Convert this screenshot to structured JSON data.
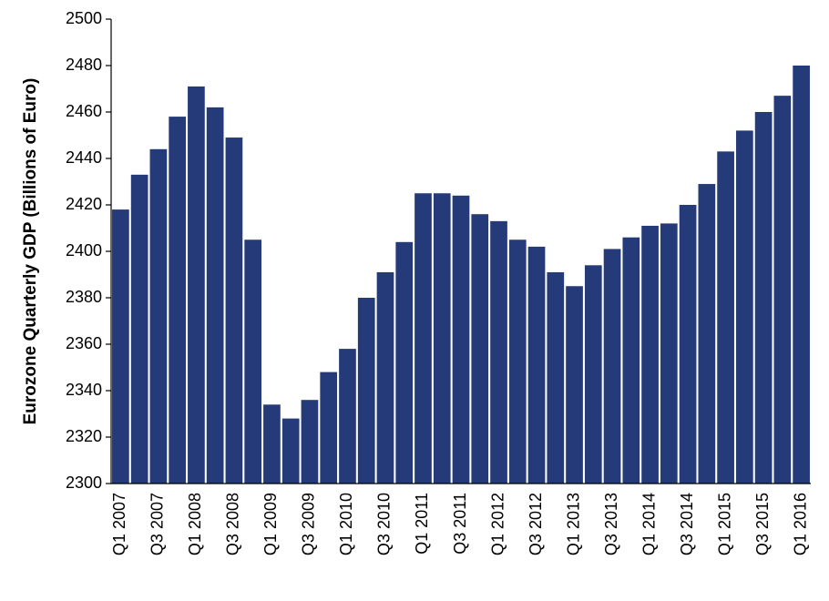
{
  "chart_data": {
    "type": "bar",
    "y_label": "Eurozone Quarterly GDP (Billions of Euro)",
    "categories": [
      "Q1 2007",
      null,
      "Q3 2007",
      null,
      "Q1 2008",
      null,
      "Q3 2008",
      null,
      "Q1 2009",
      null,
      "Q3 2009",
      null,
      "Q1 2010",
      null,
      "Q3 2010",
      null,
      "Q1 2011",
      null,
      "Q3 2011",
      null,
      "Q1 2012",
      null,
      "Q3 2012",
      null,
      "Q1 2013",
      null,
      "Q3 2013",
      null,
      "Q1 2014",
      null,
      "Q3 2014",
      null,
      "Q1 2015",
      null,
      "Q3 2015",
      null,
      "Q1 2016"
    ],
    "values": [
      2418,
      2433,
      2444,
      2458,
      2471,
      2462,
      2449,
      2405,
      2334,
      2328,
      2336,
      2348,
      2358,
      2380,
      2391,
      2404,
      2425,
      2425,
      2424,
      2416,
      2413,
      2405,
      2402,
      2391,
      2385,
      2394,
      2401,
      2406,
      2411,
      2412,
      2420,
      2429,
      2443,
      2452,
      2460,
      2467,
      2480
    ],
    "color": "#253a78",
    "ylim": [
      2300,
      2500
    ],
    "yticks": [
      2300,
      2320,
      2340,
      2360,
      2380,
      2400,
      2420,
      2440,
      2460,
      2480,
      2500
    ],
    "grid": false
  }
}
